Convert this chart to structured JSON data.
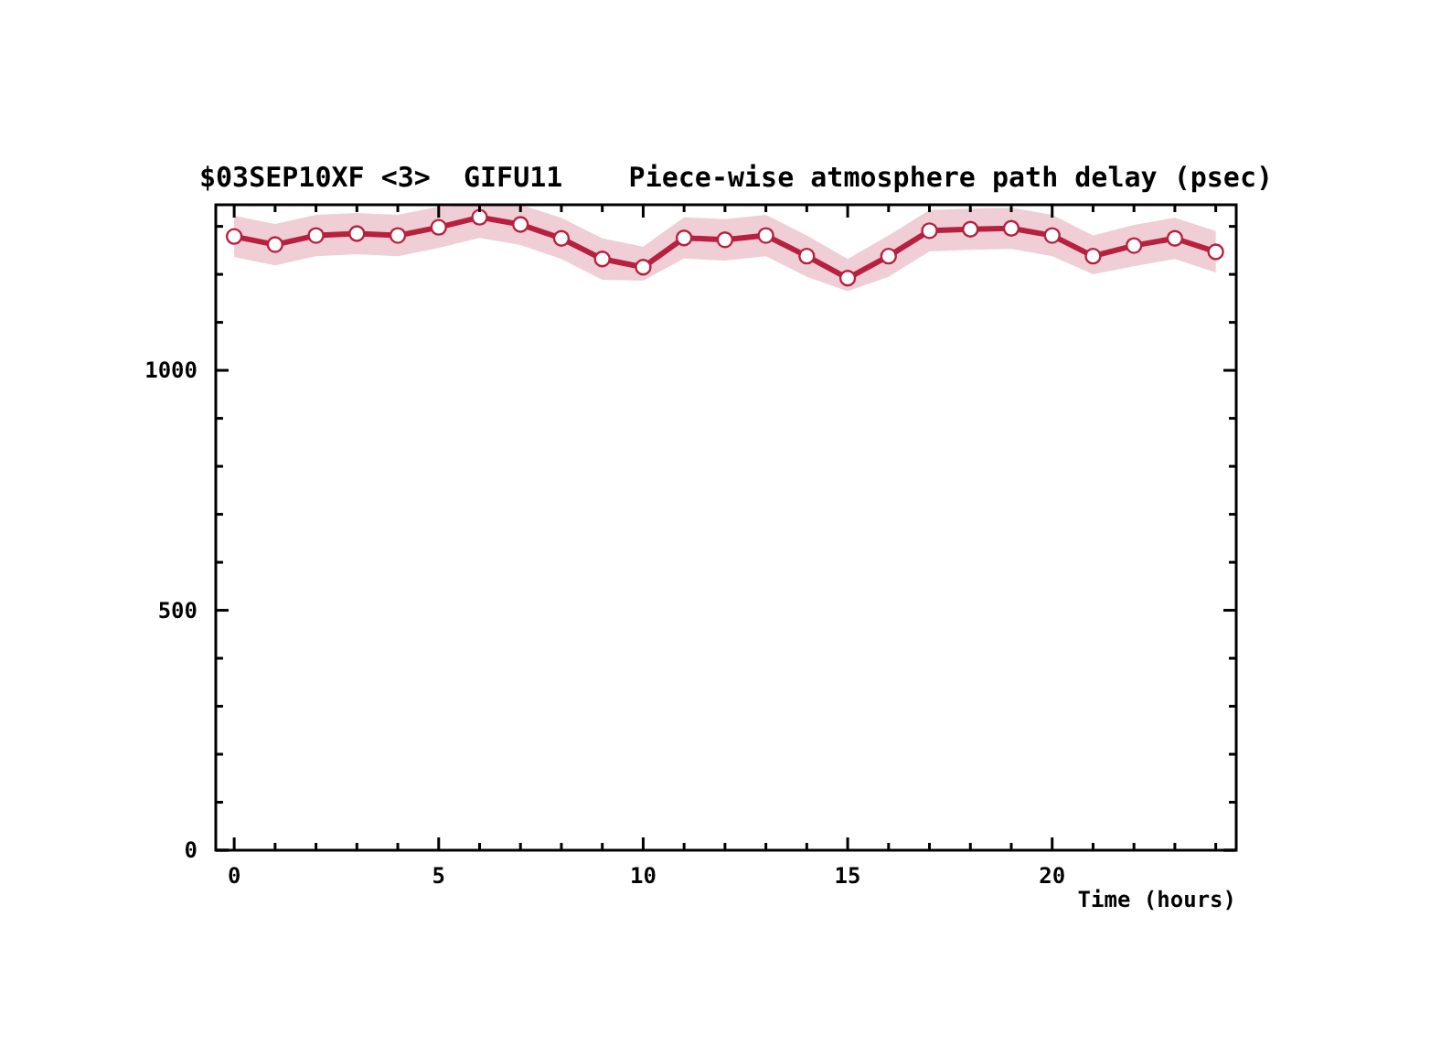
{
  "chart_data": {
    "type": "line",
    "title": "$03SEP10XF <3>  GIFU11    Piece-wise atmosphere path delay (psec)",
    "xlabel": "Time (hours)",
    "x": [
      0,
      1,
      2,
      3,
      4,
      5,
      6,
      7,
      8,
      9,
      10,
      11,
      12,
      13,
      14,
      15,
      16,
      17,
      18,
      19,
      20,
      21,
      22,
      23,
      24
    ],
    "series": [
      {
        "color": "#b8203f",
        "values": [
          1279,
          1262,
          1281,
          1285,
          1281,
          1298,
          1319,
          1304,
          1275,
          1232,
          1215,
          1276,
          1272,
          1281,
          1238,
          1192,
          1238,
          1291,
          1294,
          1296,
          1281,
          1238,
          1260,
          1275,
          1247
        ],
        "lower": [
          1236,
          1219,
          1238,
          1242,
          1238,
          1255,
          1276,
          1261,
          1232,
          1189,
          1187,
          1233,
          1229,
          1238,
          1195,
          1165,
          1195,
          1248,
          1251,
          1253,
          1238,
          1200,
          1217,
          1232,
          1204
        ],
        "upper": [
          1322,
          1305,
          1324,
          1328,
          1324,
          1341,
          1345,
          1345,
          1318,
          1275,
          1258,
          1319,
          1315,
          1324,
          1281,
          1232,
          1281,
          1334,
          1337,
          1339,
          1324,
          1281,
          1303,
          1318,
          1290
        ]
      }
    ],
    "xlim": [
      -0.45,
      24.5
    ],
    "ylim": [
      0,
      1345
    ],
    "xticks": [
      0,
      {
        "value": 1,
        "label": null
      },
      {
        "value": 2,
        "label": null
      },
      {
        "value": 3,
        "label": null
      },
      {
        "value": 4,
        "label": null
      },
      5,
      {
        "value": 6,
        "label": null
      },
      {
        "value": 7,
        "label": null
      },
      {
        "value": 8,
        "label": null
      },
      {
        "value": 9,
        "label": null
      },
      10,
      {
        "value": 11,
        "label": null
      },
      {
        "value": 12,
        "label": null
      },
      {
        "value": 13,
        "label": null
      },
      {
        "value": 14,
        "label": null
      },
      15,
      {
        "value": 16,
        "label": null
      },
      {
        "value": 17,
        "label": null
      },
      {
        "value": 18,
        "label": null
      },
      {
        "value": 19,
        "label": null
      },
      20,
      {
        "value": 21,
        "label": null
      },
      {
        "value": 22,
        "label": null
      },
      {
        "value": 23,
        "label": null
      },
      {
        "value": 24,
        "label": null
      }
    ],
    "yticks": [
      0,
      {
        "value": 100,
        "label": null
      },
      {
        "value": 200,
        "label": null
      },
      {
        "value": 300,
        "label": null
      },
      {
        "value": 400,
        "label": null
      },
      500,
      {
        "value": 600,
        "label": null
      },
      {
        "value": 700,
        "label": null
      },
      {
        "value": 800,
        "label": null
      },
      {
        "value": 900,
        "label": null
      },
      1000,
      {
        "value": 1100,
        "label": null
      },
      {
        "value": 1200,
        "label": null
      },
      {
        "value": 1300,
        "label": null
      }
    ],
    "marker": "circle",
    "line_style": "solid",
    "grid": false
  }
}
